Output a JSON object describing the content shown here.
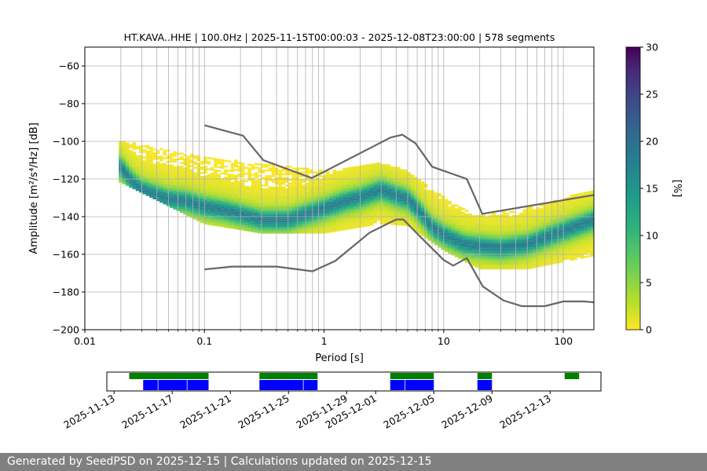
{
  "chart_data": [
    {
      "type": "heatmap",
      "title": "HT.KAVA..HHE | 100.0Hz | 2025-11-15T00:00:03 - 2025-12-08T23:00:00 | 578 segments",
      "xlabel": "Period [s]",
      "ylabel": "Amplitude [m²/s⁴/Hz] [dB]",
      "x_scale": "log",
      "xlim": [
        0.01,
        180
      ],
      "ylim": [
        -200,
        -50
      ],
      "x_ticks": [
        "0.01",
        "0.1",
        "1",
        "10",
        "100"
      ],
      "y_ticks": [
        "−200",
        "−180",
        "−160",
        "−140",
        "−120",
        "−100",
        "−80",
        "−60"
      ],
      "grid": true,
      "colorbar": {
        "label": "[%]",
        "range": [
          0,
          30
        ],
        "ticks": [
          "0",
          "5",
          "10",
          "15",
          "20",
          "25",
          "30"
        ],
        "colormap": "viridis_r"
      },
      "mode_curve": {
        "x": [
          0.02,
          0.025,
          0.03,
          0.04,
          0.05,
          0.07,
          0.1,
          0.15,
          0.2,
          0.3,
          0.5,
          0.7,
          1,
          1.5,
          2,
          3,
          4,
          5,
          6,
          8,
          10,
          15,
          20,
          30,
          50,
          80,
          120,
          180
        ],
        "y": [
          -114,
          -122,
          -126,
          -129,
          -131,
          -132,
          -135,
          -137,
          -139,
          -142,
          -142,
          -139,
          -136,
          -132,
          -130,
          -126,
          -129,
          -131,
          -136,
          -146,
          -150,
          -155,
          -156,
          -157,
          -155,
          -150,
          -146,
          -142
        ]
      },
      "spread": {
        "x": [
          0.02,
          0.1,
          0.3,
          1,
          3,
          5,
          10,
          20,
          50,
          180
        ],
        "upper": [
          -100,
          -109,
          -112,
          -116,
          -112,
          -116,
          -130,
          -140,
          -136,
          -126
        ],
        "lower": [
          -122,
          -144,
          -149,
          -149,
          -144,
          -145,
          -158,
          -168,
          -168,
          -161
        ]
      },
      "series": [
        {
          "name": "",
          "x": [
            0.1,
            0.21,
            0.31,
            0.79,
            3.6,
            4.5,
            5.8,
            8.0,
            15.6,
            21,
            180
          ],
          "y": [
            -91.5,
            -97,
            -110,
            -119.5,
            -98,
            -96.5,
            -101,
            -113.5,
            -120,
            -138.5,
            -128.5
          ]
        },
        {
          "name": "",
          "x": [
            0.1,
            0.17,
            0.4,
            0.8,
            1.24,
            2.4,
            4.0,
            4.6,
            6.0,
            10,
            12,
            15.6,
            21.2,
            31.6,
            45,
            70,
            100,
            150,
            180
          ],
          "y": [
            -168,
            -166.5,
            -166.5,
            -169,
            -163.5,
            -148.5,
            -141.5,
            -141.5,
            -149,
            -163,
            -166,
            -162,
            -177,
            -184.5,
            -187.5,
            -187.5,
            -185,
            -185,
            -185.5
          ]
        }
      ]
    },
    {
      "type": "bar",
      "x_type": "date",
      "xlim": [
        "2025-11-12T12:00",
        "2025-12-16T12:00"
      ],
      "x_ticks": [
        "2025-11-13",
        "2025-11-17",
        "2025-11-21",
        "2025-11-25",
        "2025-11-29",
        "2025-12-01",
        "2025-12-05",
        "2025-12-09",
        "2025-12-13"
      ],
      "series": [
        {
          "name": "",
          "color": "#008000",
          "spans": [
            [
              "2025-11-14T01:00",
              "2025-11-19T12:00"
            ],
            [
              "2025-11-23T00:00",
              "2025-11-27T00:00"
            ],
            [
              "2025-12-02T00:00",
              "2025-12-05T00:00"
            ],
            [
              "2025-12-08T00:00",
              "2025-12-09T00:00"
            ],
            [
              "2025-12-14T00:00",
              "2025-12-15T00:00"
            ]
          ]
        },
        {
          "name": "",
          "color": "#0000ff",
          "spans": [
            [
              "2025-11-15T00:00",
              "2025-11-16T00:00"
            ],
            [
              "2025-11-16T01:00",
              "2025-11-18T00:00"
            ],
            [
              "2025-11-18T01:00",
              "2025-11-19T12:00"
            ],
            [
              "2025-11-23T00:00",
              "2025-11-26T00:00"
            ],
            [
              "2025-11-26T01:00",
              "2025-11-27T00:00"
            ],
            [
              "2025-12-02T00:00",
              "2025-12-03T00:00"
            ],
            [
              "2025-12-03T01:00",
              "2025-12-05T00:00"
            ],
            [
              "2025-12-08T00:00",
              "2025-12-09T00:00"
            ]
          ]
        }
      ]
    }
  ],
  "footer": {
    "text": "Generated by SeedPSD on 2025-12-15 | Calculations updated on 2025-12-15"
  },
  "colors": {
    "model_line": "#666666",
    "grid": "#b0b0b0",
    "footer_bg": "#808080"
  }
}
